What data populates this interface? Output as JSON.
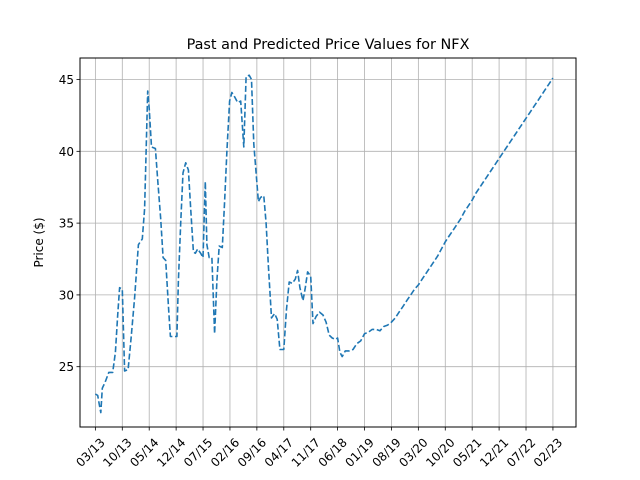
{
  "chart_data": {
    "type": "line",
    "title": "Past and Predicted Price Values for NFX",
    "xlabel": "",
    "ylabel": "Price ($)",
    "ylim": [
      20.8,
      46.5
    ],
    "y_ticks": [
      25,
      30,
      35,
      40,
      45
    ],
    "x_tick_labels": [
      "03/13",
      "10/13",
      "05/14",
      "12/14",
      "07/15",
      "02/16",
      "09/16",
      "04/17",
      "11/17",
      "06/18",
      "01/19",
      "08/19",
      "03/20",
      "10/20",
      "05/21",
      "12/21",
      "07/22",
      "02/23"
    ],
    "x_tick_months": [
      0,
      7,
      14,
      21,
      28,
      35,
      42,
      49,
      56,
      63,
      70,
      77,
      84,
      91,
      98,
      105,
      112,
      119
    ],
    "xlim": [
      -4,
      125
    ],
    "x_unit": "months since 03/13",
    "grid": true,
    "line_color": "#1f77b4",
    "line_style": "dashed",
    "series": [
      {
        "name": "",
        "points": [
          [
            0,
            23.1
          ],
          [
            0.6,
            23.0
          ],
          [
            1.0,
            22.4
          ],
          [
            1.4,
            21.8
          ],
          [
            1.8,
            23.5
          ],
          [
            2.5,
            23.9
          ],
          [
            3.5,
            24.6
          ],
          [
            4.5,
            24.6
          ],
          [
            5.2,
            26.0
          ],
          [
            5.8,
            28.6
          ],
          [
            6.3,
            30.5
          ],
          [
            7.0,
            30.4
          ],
          [
            7.6,
            24.7
          ],
          [
            8.5,
            24.8
          ],
          [
            9.3,
            27.0
          ],
          [
            10.2,
            29.8
          ],
          [
            11.2,
            33.5
          ],
          [
            12.2,
            33.9
          ],
          [
            12.8,
            36.0
          ],
          [
            13.6,
            44.2
          ],
          [
            14.0,
            43.0
          ],
          [
            14.6,
            40.3
          ],
          [
            15.6,
            40.2
          ],
          [
            16.2,
            38.0
          ],
          [
            17.0,
            35.3
          ],
          [
            17.6,
            32.6
          ],
          [
            18.3,
            32.4
          ],
          [
            19.1,
            28.8
          ],
          [
            19.5,
            27.1
          ],
          [
            20.5,
            27.1
          ],
          [
            21.2,
            27.1
          ],
          [
            21.6,
            31.0
          ],
          [
            22.2,
            35.0
          ],
          [
            22.8,
            38.5
          ],
          [
            23.5,
            39.2
          ],
          [
            24.2,
            38.7
          ],
          [
            24.8,
            36.0
          ],
          [
            25.5,
            33.0
          ],
          [
            26.0,
            32.9
          ],
          [
            26.6,
            33.2
          ],
          [
            27.4,
            32.9
          ],
          [
            28.0,
            32.6
          ],
          [
            28.6,
            37.9
          ],
          [
            29.0,
            33.5
          ],
          [
            29.6,
            32.6
          ],
          [
            30.3,
            32.6
          ],
          [
            31.0,
            27.3
          ],
          [
            31.6,
            31.0
          ],
          [
            32.2,
            33.4
          ],
          [
            33.0,
            33.3
          ],
          [
            33.6,
            36.5
          ],
          [
            34.2,
            40.0
          ],
          [
            34.9,
            43.5
          ],
          [
            35.5,
            44.1
          ],
          [
            36.2,
            43.8
          ],
          [
            37.0,
            43.4
          ],
          [
            37.8,
            43.5
          ],
          [
            38.6,
            40.3
          ],
          [
            39.2,
            45.2
          ],
          [
            40.0,
            45.3
          ],
          [
            40.6,
            45.0
          ],
          [
            41.2,
            40.5
          ],
          [
            41.8,
            38.5
          ],
          [
            42.4,
            36.5
          ],
          [
            43.0,
            36.8
          ],
          [
            43.8,
            36.9
          ],
          [
            44.4,
            35.0
          ],
          [
            45.0,
            32.0
          ],
          [
            45.8,
            28.4
          ],
          [
            46.6,
            28.7
          ],
          [
            47.3,
            28.3
          ],
          [
            48.0,
            26.2
          ],
          [
            49.0,
            26.2
          ],
          [
            49.7,
            29.0
          ],
          [
            50.4,
            30.9
          ],
          [
            51.2,
            30.8
          ],
          [
            52.0,
            31.1
          ],
          [
            52.6,
            31.7
          ],
          [
            53.2,
            30.5
          ],
          [
            54.0,
            29.6
          ],
          [
            54.6,
            30.5
          ],
          [
            55.2,
            31.6
          ],
          [
            56.0,
            31.3
          ],
          [
            56.6,
            28.0
          ],
          [
            57.4,
            28.5
          ],
          [
            58.3,
            28.8
          ],
          [
            59.2,
            28.6
          ],
          [
            60.0,
            28.1
          ],
          [
            60.8,
            27.2
          ],
          [
            61.6,
            27.0
          ],
          [
            62.4,
            26.9
          ],
          [
            63.0,
            27.0
          ],
          [
            63.6,
            26.0
          ],
          [
            64.2,
            25.7
          ],
          [
            65.0,
            26.1
          ],
          [
            66.0,
            26.1
          ],
          [
            67.0,
            26.2
          ],
          [
            68.0,
            26.6
          ],
          [
            69.0,
            26.8
          ],
          [
            70.0,
            27.3
          ],
          [
            71.0,
            27.4
          ],
          [
            72.0,
            27.6
          ],
          [
            73.0,
            27.6
          ],
          [
            74.0,
            27.5
          ],
          [
            75.0,
            27.8
          ],
          [
            76.0,
            27.9
          ],
          [
            77.0,
            28.1
          ],
          [
            78.0,
            28.4
          ],
          [
            79.0,
            28.8
          ],
          [
            80.0,
            29.2
          ],
          [
            81.0,
            29.6
          ],
          [
            82.0,
            30.0
          ],
          [
            83.0,
            30.4
          ],
          [
            84.0,
            30.7
          ],
          [
            85.0,
            31.1
          ],
          [
            86.0,
            31.5
          ],
          [
            87.0,
            31.9
          ],
          [
            88.0,
            32.3
          ],
          [
            89.0,
            32.7
          ],
          [
            90.0,
            33.2
          ],
          [
            91.0,
            33.7
          ],
          [
            92.0,
            34.1
          ],
          [
            93.0,
            34.5
          ],
          [
            94.0,
            34.9
          ],
          [
            95.0,
            35.3
          ],
          [
            96.0,
            35.8
          ],
          [
            97.0,
            36.2
          ],
          [
            98.0,
            36.6
          ],
          [
            99.0,
            37.1
          ],
          [
            100.0,
            37.5
          ],
          [
            101.0,
            37.9
          ],
          [
            102.0,
            38.3
          ],
          [
            103.0,
            38.7
          ],
          [
            104.0,
            39.1
          ],
          [
            105.0,
            39.5
          ],
          [
            106.0,
            39.9
          ],
          [
            107.0,
            40.3
          ],
          [
            108.0,
            40.7
          ],
          [
            109.0,
            41.1
          ],
          [
            110.0,
            41.5
          ],
          [
            111.0,
            41.9
          ],
          [
            112.0,
            42.3
          ],
          [
            113.0,
            42.7
          ],
          [
            114.0,
            43.1
          ],
          [
            115.0,
            43.5
          ],
          [
            116.0,
            43.9
          ],
          [
            117.0,
            44.3
          ],
          [
            118.0,
            44.7
          ],
          [
            119.0,
            45.1
          ]
        ]
      }
    ]
  }
}
